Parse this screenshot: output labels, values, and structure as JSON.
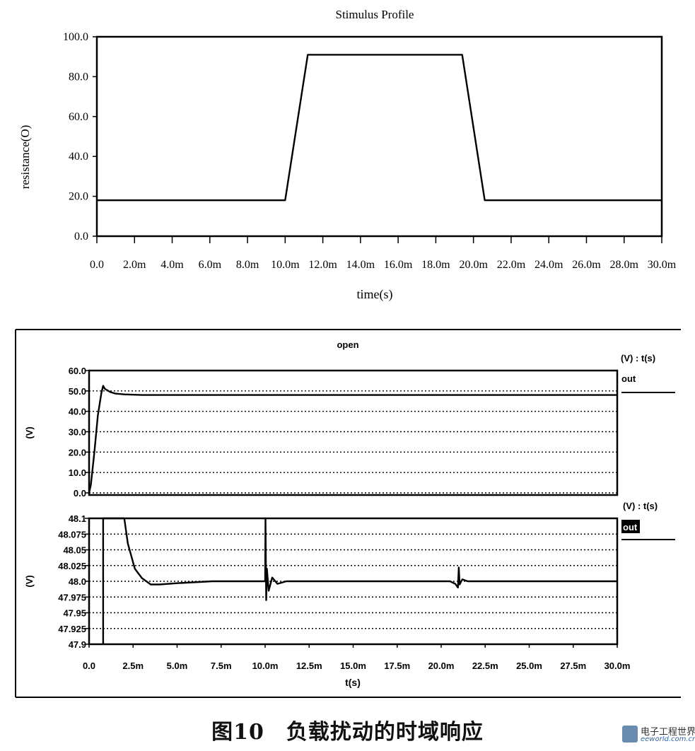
{
  "caption": "图10　负载扰动的时域响应",
  "watermark": {
    "line1": "电子工程世界",
    "line2": "eeworld.com.cn"
  },
  "chart_data": [
    {
      "type": "line",
      "title": "Stimulus Profile",
      "xlabel": "time(s)",
      "ylabel": "resistance(O)",
      "xlim": [
        0,
        30
      ],
      "ylim": [
        0,
        100
      ],
      "x_unit": "ms",
      "xticks": [
        0,
        2,
        4,
        6,
        8,
        10,
        12,
        14,
        16,
        18,
        20,
        22,
        24,
        26,
        28,
        30
      ],
      "xtick_labels": [
        "0.0",
        "2.0m",
        "4.0m",
        "6.0m",
        "8.0m",
        "10.0m",
        "12.0m",
        "14.0m",
        "16.0m",
        "18.0m",
        "20.0m",
        "22.0m",
        "24.0m",
        "26.0m",
        "28.0m",
        "30.0m"
      ],
      "yticks": [
        0,
        20,
        40,
        60,
        80,
        100
      ],
      "ytick_labels": [
        "0.0",
        "20.0",
        "40.0",
        "60.0",
        "80.0",
        "100.0"
      ],
      "grid": false,
      "series": [
        {
          "x": [
            0,
            10,
            11.2,
            19.4,
            20.6,
            30
          ],
          "y": [
            18,
            18,
            91,
            91,
            18,
            18
          ]
        }
      ]
    },
    {
      "type": "line",
      "title": "open",
      "xlabel": "t(s)",
      "ylabel": "(V)",
      "legend_header": "(V) : t(s)",
      "xlim": [
        0,
        30
      ],
      "ylim": [
        0,
        60
      ],
      "x_unit": "ms",
      "yticks": [
        0,
        10,
        20,
        30,
        40,
        50,
        60
      ],
      "ytick_labels": [
        "0.0",
        "10.0",
        "20.0",
        "30.0",
        "40.0",
        "50.0",
        "60.0"
      ],
      "grid": true,
      "legend_position": "right",
      "series": [
        {
          "name": "out",
          "x": [
            0,
            0.1,
            0.3,
            0.5,
            0.7,
            0.8,
            0.9,
            1.0,
            1.2,
            1.5,
            2.0,
            3.0,
            30
          ],
          "y": [
            0,
            4,
            20,
            38,
            49,
            52.5,
            51,
            50.5,
            49.5,
            48.7,
            48.3,
            48.0,
            48.0
          ]
        }
      ]
    },
    {
      "type": "line",
      "xlabel": "t(s)",
      "ylabel": "(V)",
      "legend_header": "(V) : t(s)",
      "xlim": [
        0,
        30
      ],
      "ylim": [
        47.9,
        48.1
      ],
      "x_unit": "ms",
      "xticks": [
        0,
        2.5,
        5,
        7.5,
        10,
        12.5,
        15,
        17.5,
        20,
        22.5,
        25,
        27.5,
        30
      ],
      "xtick_labels": [
        "0.0",
        "2.5m",
        "5.0m",
        "7.5m",
        "10.0m",
        "12.5m",
        "15.0m",
        "17.5m",
        "20.0m",
        "22.5m",
        "25.0m",
        "27.5m",
        "30.0m"
      ],
      "yticks": [
        47.9,
        47.925,
        47.95,
        47.975,
        48.0,
        48.025,
        48.05,
        48.075,
        48.1
      ],
      "ytick_labels": [
        "47.9",
        "47.925",
        "47.95",
        "47.975",
        "48.0",
        "48.025",
        "48.05",
        "48.075",
        "48.1"
      ],
      "grid": true,
      "legend_position": "right",
      "series": [
        {
          "name": "out",
          "x": [
            0.8,
            0.8,
            2.0,
            2.2,
            2.6,
            3.0,
            3.5,
            4.0,
            5.0,
            7.0,
            10.0,
            10.02,
            10.06,
            10.1,
            10.2,
            10.4,
            10.7,
            11.2,
            12.0,
            20.5,
            20.8,
            20.95,
            21.0,
            21.05,
            21.2,
            21.5,
            30
          ],
          "y": [
            47.9,
            48.1,
            48.1,
            48.06,
            48.02,
            48.005,
            47.995,
            47.995,
            47.997,
            48.0,
            48.0,
            48.1,
            47.97,
            48.02,
            47.985,
            48.006,
            47.996,
            48.0,
            48.0,
            48.0,
            47.996,
            47.99,
            48.022,
            47.995,
            48.003,
            48.0,
            48.0
          ]
        }
      ]
    }
  ]
}
